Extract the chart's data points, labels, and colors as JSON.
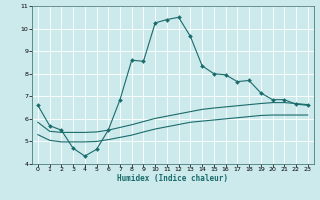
{
  "xlabel": "Humidex (Indice chaleur)",
  "bg_color": "#cce9ec",
  "line_color": "#1a6b6b",
  "grid_color": "#ffffff",
  "xlim": [
    -0.5,
    23.5
  ],
  "ylim": [
    4,
    11
  ],
  "xticks": [
    0,
    1,
    2,
    3,
    4,
    5,
    6,
    7,
    8,
    9,
    10,
    11,
    12,
    13,
    14,
    15,
    16,
    17,
    18,
    19,
    20,
    21,
    22,
    23
  ],
  "yticks": [
    4,
    5,
    6,
    7,
    8,
    9,
    10,
    11
  ],
  "curve1_x": [
    0,
    1,
    2,
    3,
    4,
    5,
    6,
    7,
    8,
    9,
    10,
    11,
    12,
    13,
    14,
    15,
    16,
    17,
    18,
    19,
    20,
    21,
    22,
    23
  ],
  "curve1_y": [
    6.6,
    5.7,
    5.5,
    4.7,
    4.35,
    4.65,
    5.5,
    6.85,
    8.6,
    8.55,
    10.25,
    10.4,
    10.5,
    9.65,
    8.35,
    8.0,
    7.95,
    7.65,
    7.7,
    7.15,
    6.85,
    6.85,
    6.65,
    6.6
  ],
  "curve2_x": [
    0,
    1,
    2,
    3,
    4,
    5,
    6,
    7,
    8,
    9,
    10,
    11,
    12,
    13,
    14,
    15,
    16,
    17,
    18,
    19,
    20,
    21,
    22,
    23
  ],
  "curve2_y": [
    5.85,
    5.45,
    5.4,
    5.4,
    5.4,
    5.42,
    5.5,
    5.62,
    5.74,
    5.88,
    6.02,
    6.12,
    6.22,
    6.32,
    6.42,
    6.48,
    6.53,
    6.58,
    6.63,
    6.68,
    6.72,
    6.72,
    6.68,
    6.63
  ],
  "curve3_x": [
    0,
    1,
    2,
    3,
    4,
    5,
    6,
    7,
    8,
    9,
    10,
    11,
    12,
    13,
    14,
    15,
    16,
    17,
    18,
    19,
    20,
    21,
    22,
    23
  ],
  "curve3_y": [
    5.3,
    5.05,
    4.98,
    4.98,
    4.98,
    5.0,
    5.08,
    5.18,
    5.28,
    5.42,
    5.55,
    5.65,
    5.75,
    5.85,
    5.9,
    5.95,
    6.0,
    6.05,
    6.1,
    6.15,
    6.17,
    6.17,
    6.17,
    6.17
  ]
}
